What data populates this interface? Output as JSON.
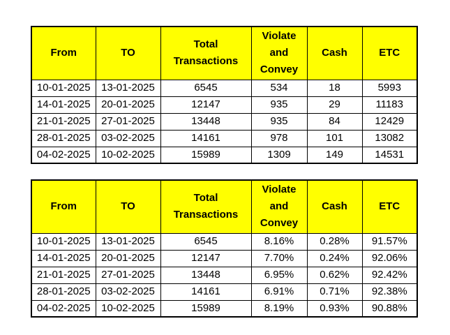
{
  "headers": [
    "From",
    "TO",
    "Total Transactions",
    "Violate and Convey",
    "Cash",
    "ETC"
  ],
  "table_counts": {
    "rows": [
      [
        "10-01-2025",
        "13-01-2025",
        "6545",
        "534",
        "18",
        "5993"
      ],
      [
        "14-01-2025",
        "20-01-2025",
        "12147",
        "935",
        "29",
        "11183"
      ],
      [
        "21-01-2025",
        "27-01-2025",
        "13448",
        "935",
        "84",
        "12429"
      ],
      [
        "28-01-2025",
        "03-02-2025",
        "14161",
        "978",
        "101",
        "13082"
      ],
      [
        "04-02-2025",
        "10-02-2025",
        "15989",
        "1309",
        "149",
        "14531"
      ]
    ]
  },
  "table_percent": {
    "rows": [
      [
        "10-01-2025",
        "13-01-2025",
        "6545",
        "8.16%",
        "0.28%",
        "91.57%"
      ],
      [
        "14-01-2025",
        "20-01-2025",
        "12147",
        "7.70%",
        "0.24%",
        "92.06%"
      ],
      [
        "21-01-2025",
        "27-01-2025",
        "13448",
        "6.95%",
        "0.62%",
        "92.42%"
      ],
      [
        "28-01-2025",
        "03-02-2025",
        "14161",
        "6.91%",
        "0.71%",
        "92.38%"
      ],
      [
        "04-02-2025",
        "10-02-2025",
        "15989",
        "8.19%",
        "0.93%",
        "90.88%"
      ]
    ]
  },
  "colors": {
    "header_bg": "#ffff00",
    "border": "#000000",
    "cell_bg": "#ffffff"
  }
}
